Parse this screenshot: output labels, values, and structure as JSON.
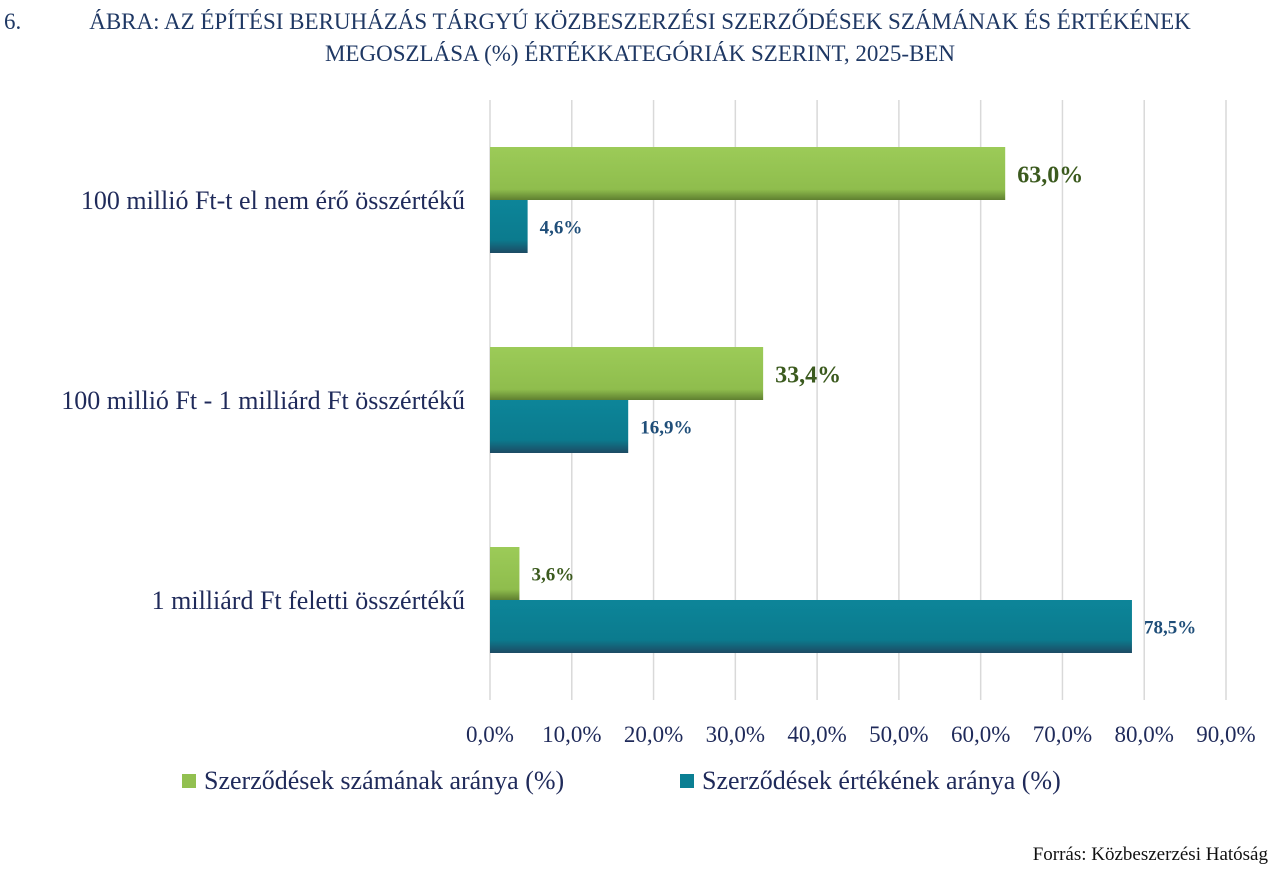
{
  "title": {
    "number": "6.",
    "line1": "ÁBRA: AZ ÉPÍTÉSI BERUHÁZÁS TÁRGYÚ KÖZBESZERZÉSI SZERZŐDÉSEK SZÁMÁNAK ÉS ÉRTÉKÉNEK",
    "line2": "MEGOSZLÁSA (%) ÉRTÉKKATEGÓRIÁK SZERINT, 2025-BEN"
  },
  "chart_data": {
    "type": "bar",
    "orientation": "horizontal",
    "categories": [
      "100 millió Ft-t el nem érő összértékű",
      "100 millió Ft - 1 milliárd Ft összértékű",
      "1 milliárd Ft feletti összértékű"
    ],
    "series": [
      {
        "name": "Szerződések számának aránya (%)",
        "color": "#92c050",
        "label_color": "#3b5a1e",
        "values": [
          63.0,
          33.4,
          3.6
        ],
        "labels": [
          "63,0%",
          "33,4%",
          "3,6%"
        ]
      },
      {
        "name": "Szerződések értékének aránya (%)",
        "color": "#0b7f93",
        "label_color": "#1f4e79",
        "values": [
          4.6,
          16.9,
          78.5
        ],
        "labels": [
          "4,6%",
          "16,9%",
          "78,5%"
        ]
      }
    ],
    "xlim": [
      0,
      90
    ],
    "xticks": [
      0,
      10,
      20,
      30,
      40,
      50,
      60,
      70,
      80,
      90
    ],
    "xtick_labels": [
      "0,0%",
      "10,0%",
      "20,0%",
      "30,0%",
      "40,0%",
      "50,0%",
      "60,0%",
      "70,0%",
      "80,0%",
      "90,0%"
    ],
    "grid": true,
    "legend_position": "bottom"
  },
  "source": "Forrás: Közbeszerzési Hatóság"
}
